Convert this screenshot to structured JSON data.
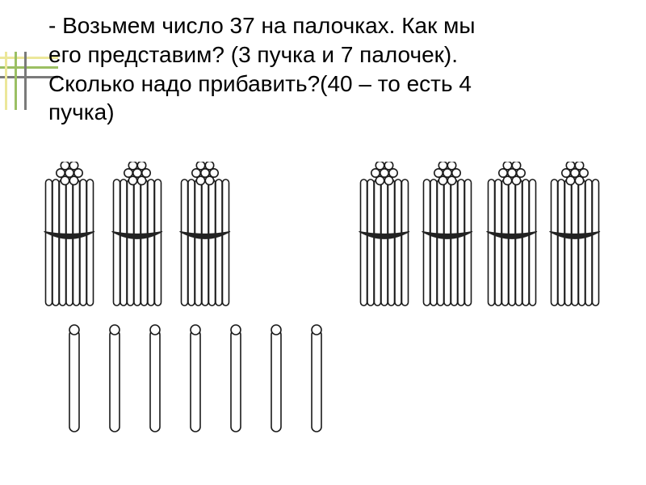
{
  "text_color": "#000000",
  "font_size": 28,
  "heading": {
    "line1": "- Возьмем число 37 на палочках. Как мы",
    "line2": "его представим? (3 пучка и 7 палочек).",
    "line3": "Сколько надо прибавить?(40 – то есть 4",
    "line4": "пучка)"
  },
  "accent": {
    "bg": "#ffffff",
    "horiz_colors": [
      "#ece79a",
      "#9bbf63",
      "#7a7a7a"
    ],
    "vert_colors": [
      "#ece79a",
      "#9bbf63",
      "#7a7a7a"
    ],
    "spacing": 12
  },
  "stick_style": {
    "stroke": "#1a1a1a",
    "stroke_width": 1.6,
    "fill": "#ffffff",
    "band_fill": "#222222",
    "bundle_svg_w": 72,
    "bundle_svg_h": 180,
    "loose_svg_w": 24,
    "loose_svg_h": 136
  },
  "layout": {
    "left_group_x": [
      0,
      84,
      168
    ],
    "right_group_x": [
      390,
      468,
      548,
      626
    ],
    "right_group_y": 0,
    "loose_x": [
      0,
      50,
      100,
      150,
      200,
      250,
      300
    ],
    "loose_y": 0
  },
  "counts": {
    "left_bundles": 3,
    "right_bundles": 4,
    "loose_sticks": 7
  }
}
